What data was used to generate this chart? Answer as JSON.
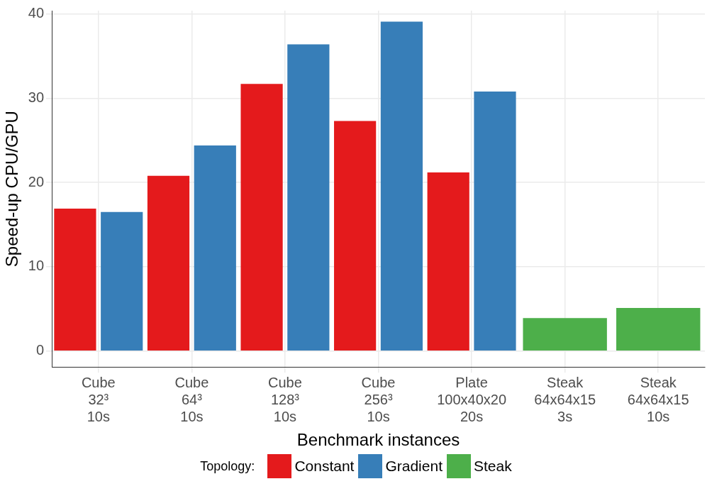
{
  "chart_data": {
    "type": "bar",
    "xlabel": "Benchmark instances",
    "ylabel": "Speed-up CPU/GPU",
    "legend_title": "Topology:",
    "categories": [
      "Cube\n32³\n10s",
      "Cube\n64³\n10s",
      "Cube\n128³\n10s",
      "Cube\n256³\n10s",
      "Plate\n100x40x20\n20s",
      "Steak\n64x64x15\n3s",
      "Steak\n64x64x15\n10s"
    ],
    "series": [
      {
        "name": "Constant",
        "color": "#e41a1c",
        "values": [
          16.9,
          20.8,
          31.7,
          27.3,
          21.2,
          null,
          null
        ]
      },
      {
        "name": "Gradient",
        "color": "#377eb8",
        "values": [
          16.5,
          24.4,
          36.4,
          39.1,
          30.8,
          null,
          null
        ]
      },
      {
        "name": "Steak",
        "color": "#4daf4a",
        "values": [
          null,
          null,
          null,
          null,
          null,
          3.9,
          5.1
        ]
      }
    ],
    "ylim": [
      -1.9,
      40.4
    ],
    "yticks": [
      0,
      10,
      20,
      30,
      40
    ],
    "grid": true,
    "legend": "bottom"
  }
}
